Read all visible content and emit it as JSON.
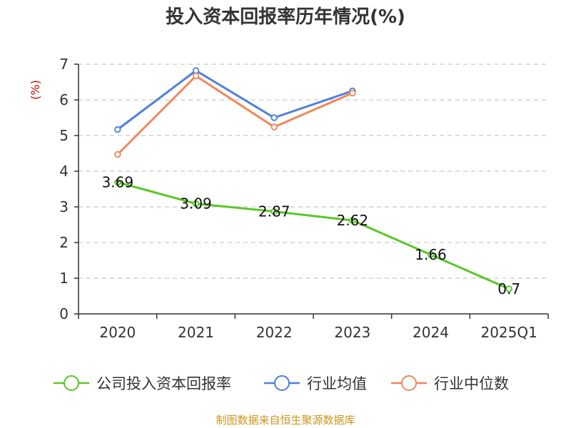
{
  "chart_data": {
    "type": "line",
    "title": "投入资本回报率历年情况(%)",
    "ylabel": "(%)",
    "xlabel": "",
    "categories": [
      "2020",
      "2021",
      "2022",
      "2023",
      "2024",
      "2025Q1"
    ],
    "ylim": [
      0,
      7
    ],
    "yticks": [
      0,
      1,
      2,
      3,
      4,
      5,
      6,
      7
    ],
    "grid": true,
    "legend_position": "bottom",
    "series": [
      {
        "name": "公司投入资本回报率",
        "color": "#5ac726",
        "values": [
          3.69,
          3.09,
          2.87,
          2.62,
          1.66,
          0.7
        ],
        "labels": [
          "3.69",
          "3.09",
          "2.87",
          "2.62",
          "1.66",
          "0.7"
        ]
      },
      {
        "name": "行业均值",
        "color": "#4e7fdc",
        "values": [
          5.17,
          6.82,
          5.5,
          6.25,
          null,
          null
        ]
      },
      {
        "name": "行业中位数",
        "color": "#f0875a",
        "values": [
          4.47,
          6.67,
          5.24,
          6.19,
          null,
          null
        ]
      }
    ]
  },
  "source": "制图数据来自恒生聚源数据库"
}
